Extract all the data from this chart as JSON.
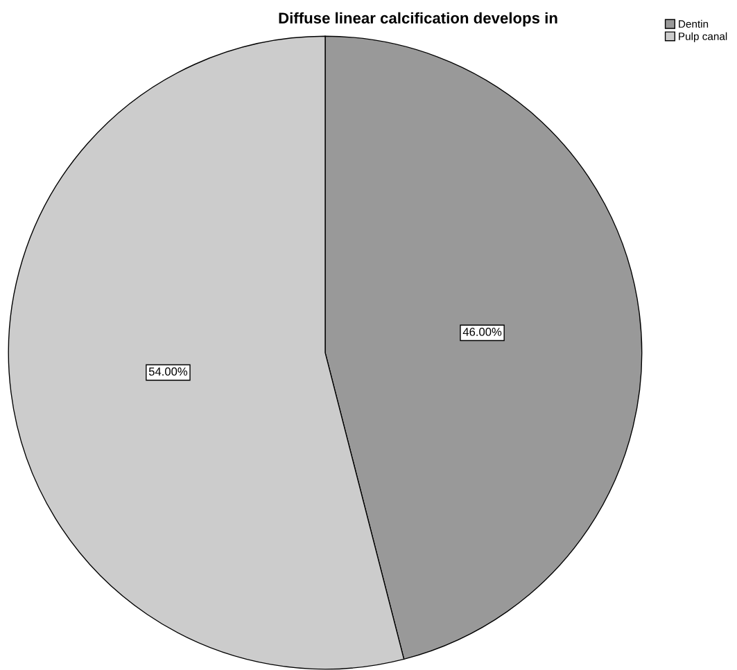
{
  "chart_data": {
    "type": "pie",
    "title": "Diffuse linear calcification develops in",
    "categories": [
      "Dentin",
      "Pulp canal"
    ],
    "values": [
      46,
      54
    ],
    "colors": [
      "#999999",
      "#cccccc"
    ],
    "value_labels": [
      "46.00%",
      "54.00%"
    ],
    "legend": "top right"
  }
}
